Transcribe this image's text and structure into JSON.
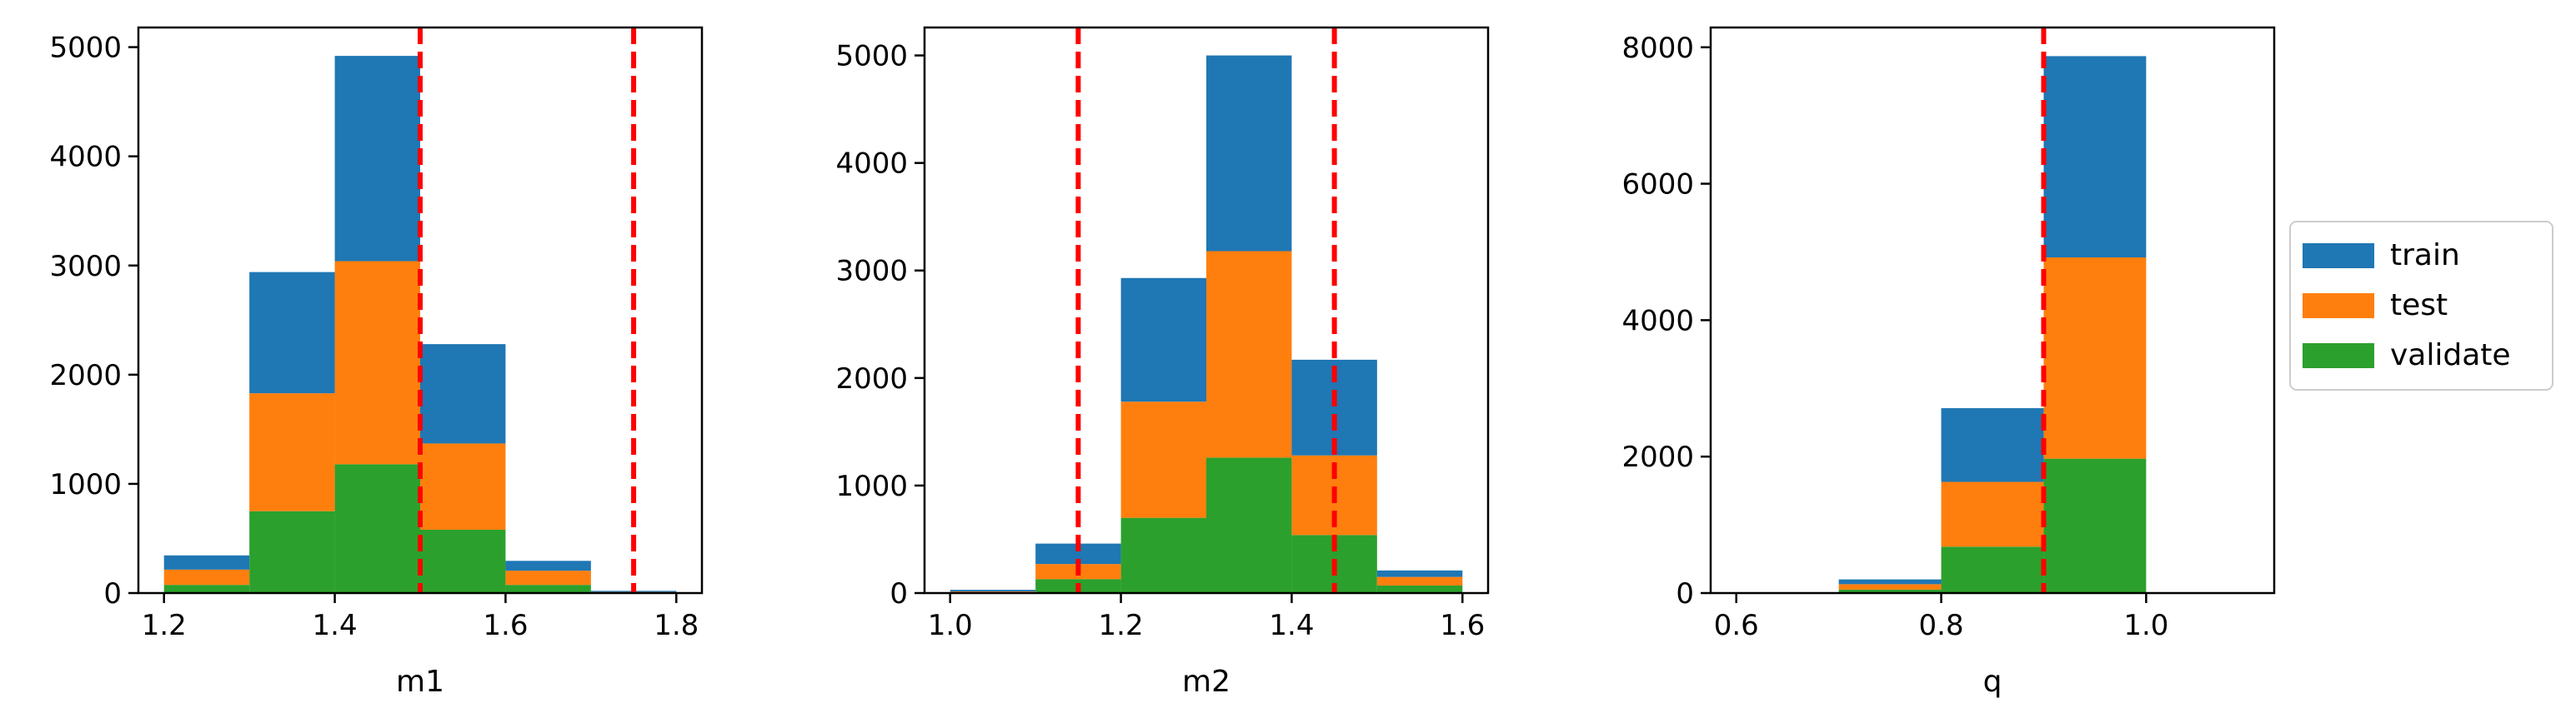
{
  "chart_data": [
    {
      "type": "bar",
      "stacked": true,
      "xlabel": "m1",
      "ylabel": "",
      "bin_edges": [
        1.2,
        1.3,
        1.4,
        1.5,
        1.6,
        1.7,
        1.8
      ],
      "xlim": [
        1.17,
        1.83
      ],
      "ylim": [
        0,
        5180
      ],
      "xticks": [
        "1.2",
        "1.4",
        "1.6",
        "1.8"
      ],
      "yticks": [
        "0",
        "1000",
        "2000",
        "3000",
        "4000",
        "5000"
      ],
      "series": [
        {
          "name": "validate",
          "values": [
            75,
            750,
            1180,
            580,
            75,
            5
          ]
        },
        {
          "name": "test",
          "values": [
            140,
            1080,
            1860,
            790,
            130,
            5
          ]
        },
        {
          "name": "train",
          "values": [
            130,
            1110,
            1880,
            910,
            90,
            10
          ]
        }
      ],
      "vlines": [
        1.5,
        1.75
      ]
    },
    {
      "type": "bar",
      "stacked": true,
      "xlabel": "m2",
      "ylabel": "",
      "bin_edges": [
        1.0,
        1.1,
        1.2,
        1.3,
        1.4,
        1.5,
        1.6
      ],
      "xlim": [
        0.97,
        1.63
      ],
      "ylim": [
        0,
        5260
      ],
      "xticks": [
        "1.0",
        "1.2",
        "1.4",
        "1.6"
      ],
      "yticks": [
        "0",
        "1000",
        "2000",
        "3000",
        "4000",
        "5000"
      ],
      "series": [
        {
          "name": "validate",
          "values": [
            5,
            130,
            700,
            1260,
            540,
            70
          ]
        },
        {
          "name": "test",
          "values": [
            10,
            140,
            1080,
            1920,
            740,
            80
          ]
        },
        {
          "name": "train",
          "values": [
            15,
            190,
            1150,
            1820,
            890,
            60
          ]
        }
      ],
      "vlines": [
        1.15,
        1.45
      ]
    },
    {
      "type": "bar",
      "stacked": true,
      "xlabel": "q",
      "ylabel": "",
      "bin_edges": [
        0.6,
        0.7,
        0.8,
        0.9,
        1.0,
        1.1
      ],
      "xlim": [
        0.575,
        1.125
      ],
      "ylim": [
        0,
        8290
      ],
      "xticks": [
        "0.6",
        "0.8",
        "1.0"
      ],
      "yticks": [
        "0",
        "2000",
        "4000",
        "6000",
        "8000"
      ],
      "series": [
        {
          "name": "validate",
          "values": [
            0,
            50,
            680,
            1970,
            0
          ]
        },
        {
          "name": "test",
          "values": [
            0,
            80,
            950,
            2950,
            0
          ]
        },
        {
          "name": "train",
          "values": [
            0,
            70,
            1080,
            2950,
            0
          ]
        }
      ],
      "vlines": [
        0.9
      ]
    }
  ],
  "legend": {
    "placement": "right",
    "entries": [
      {
        "label": "train",
        "color": "#1f77b4"
      },
      {
        "label": "test",
        "color": "#ff7f0e"
      },
      {
        "label": "validate",
        "color": "#2ca02c"
      }
    ]
  },
  "colors": {
    "validate": "#2ca02c",
    "test": "#ff7f0e",
    "train": "#1f77b4",
    "vline": "#ff0000"
  }
}
